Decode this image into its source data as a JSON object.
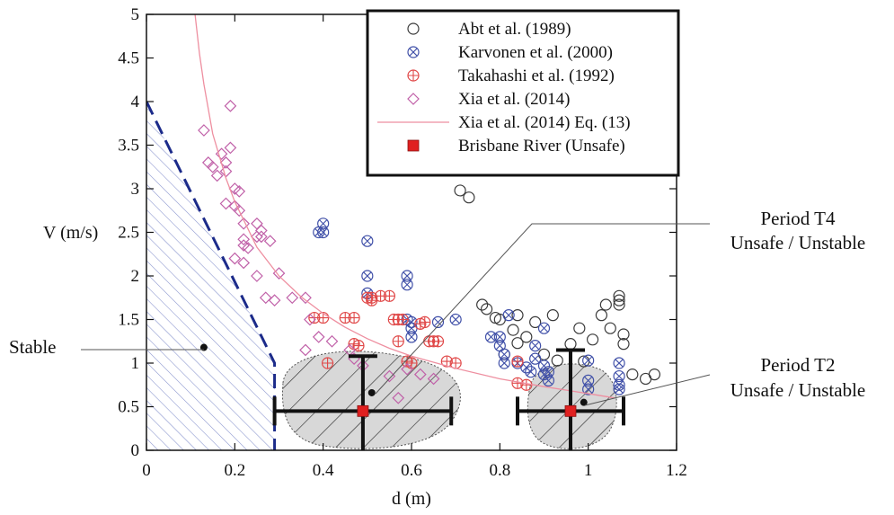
{
  "chart_data": {
    "type": "scatter",
    "xlabel": "d (m)",
    "ylabel": "V (m/s)",
    "xlim": [
      0,
      1.2
    ],
    "ylim": [
      0,
      5
    ],
    "x_ticks": [
      "0",
      "0.2",
      "0.4",
      "0.6",
      "0.8",
      "1",
      "1.2"
    ],
    "y_ticks": [
      "0",
      "0.5",
      "1",
      "1.5",
      "2",
      "2.5",
      "3",
      "3.5",
      "4",
      "4.5",
      "5"
    ],
    "legend_position": "top-right",
    "grid": false,
    "series": [
      {
        "name": "Abt et al. (1989)",
        "marker": "circle",
        "color": "#3a3a3a",
        "points": [
          [
            0.71,
            2.98
          ],
          [
            0.73,
            2.9
          ],
          [
            0.76,
            1.67
          ],
          [
            0.77,
            1.62
          ],
          [
            0.79,
            1.52
          ],
          [
            0.8,
            1.5
          ],
          [
            0.81,
            1.1
          ],
          [
            0.83,
            1.38
          ],
          [
            0.84,
            1.55
          ],
          [
            0.84,
            1.23
          ],
          [
            0.86,
            1.3
          ],
          [
            0.88,
            1.47
          ],
          [
            0.9,
            1.1
          ],
          [
            0.92,
            1.55
          ],
          [
            0.93,
            1.03
          ],
          [
            0.96,
            1.22
          ],
          [
            0.98,
            1.4
          ],
          [
            0.99,
            1.02
          ],
          [
            1.01,
            1.27
          ],
          [
            1.03,
            1.55
          ],
          [
            1.04,
            1.67
          ],
          [
            1.05,
            1.4
          ],
          [
            1.07,
            1.77
          ],
          [
            1.07,
            1.72
          ],
          [
            1.07,
            1.67
          ],
          [
            1.08,
            1.33
          ],
          [
            1.08,
            1.22
          ],
          [
            1.1,
            0.87
          ],
          [
            1.13,
            0.82
          ],
          [
            1.15,
            0.87
          ]
        ]
      },
      {
        "name": "Karvonen et al. (2000)",
        "marker": "circle-x",
        "color": "#4050a8",
        "points": [
          [
            0.39,
            2.5
          ],
          [
            0.4,
            2.6
          ],
          [
            0.4,
            2.5
          ],
          [
            0.5,
            2.4
          ],
          [
            0.5,
            2.0
          ],
          [
            0.5,
            1.8
          ],
          [
            0.59,
            2.0
          ],
          [
            0.59,
            1.9
          ],
          [
            0.59,
            1.5
          ],
          [
            0.6,
            1.47
          ],
          [
            0.6,
            1.4
          ],
          [
            0.6,
            1.3
          ],
          [
            0.66,
            1.47
          ],
          [
            0.7,
            1.5
          ],
          [
            0.78,
            1.3
          ],
          [
            0.8,
            1.3
          ],
          [
            0.8,
            1.2
          ],
          [
            0.81,
            1.1
          ],
          [
            0.81,
            1.0
          ],
          [
            0.82,
            1.55
          ],
          [
            0.84,
            1.0
          ],
          [
            0.86,
            0.95
          ],
          [
            0.87,
            0.9
          ],
          [
            0.88,
            1.2
          ],
          [
            0.88,
            1.05
          ],
          [
            0.9,
            1.4
          ],
          [
            0.9,
            0.97
          ],
          [
            0.9,
            0.87
          ],
          [
            0.91,
            0.9
          ],
          [
            0.91,
            0.8
          ],
          [
            1.0,
            1.03
          ],
          [
            1.0,
            0.8
          ],
          [
            1.0,
            0.7
          ],
          [
            1.07,
            1.0
          ],
          [
            1.07,
            0.85
          ],
          [
            1.07,
            0.75
          ],
          [
            1.07,
            0.7
          ]
        ]
      },
      {
        "name": "Takahashi et al. (1992)",
        "marker": "circle-plus",
        "color": "#e04848",
        "points": [
          [
            0.38,
            1.52
          ],
          [
            0.4,
            1.52
          ],
          [
            0.41,
            1.0
          ],
          [
            0.45,
            1.52
          ],
          [
            0.47,
            1.52
          ],
          [
            0.47,
            1.22
          ],
          [
            0.48,
            1.2
          ],
          [
            0.5,
            1.75
          ],
          [
            0.51,
            1.75
          ],
          [
            0.51,
            1.72
          ],
          [
            0.53,
            1.77
          ],
          [
            0.55,
            1.77
          ],
          [
            0.56,
            1.5
          ],
          [
            0.57,
            1.5
          ],
          [
            0.57,
            1.25
          ],
          [
            0.58,
            1.5
          ],
          [
            0.59,
            1.02
          ],
          [
            0.6,
            1.0
          ],
          [
            0.62,
            1.45
          ],
          [
            0.63,
            1.47
          ],
          [
            0.64,
            1.25
          ],
          [
            0.65,
            1.25
          ],
          [
            0.66,
            1.25
          ],
          [
            0.68,
            1.02
          ],
          [
            0.7,
            1.0
          ],
          [
            0.84,
            1.02
          ],
          [
            0.84,
            0.77
          ],
          [
            0.86,
            0.75
          ]
        ]
      },
      {
        "name": "Xia et al. (2014)",
        "marker": "diamond",
        "color": "#c060a8",
        "points": [
          [
            0.13,
            3.67
          ],
          [
            0.14,
            3.3
          ],
          [
            0.15,
            3.25
          ],
          [
            0.16,
            3.15
          ],
          [
            0.17,
            3.4
          ],
          [
            0.18,
            3.3
          ],
          [
            0.18,
            3.2
          ],
          [
            0.19,
            3.95
          ],
          [
            0.19,
            3.47
          ],
          [
            0.2,
            3.0
          ],
          [
            0.21,
            2.97
          ],
          [
            0.18,
            2.83
          ],
          [
            0.2,
            2.8
          ],
          [
            0.21,
            2.75
          ],
          [
            0.22,
            2.6
          ],
          [
            0.22,
            2.42
          ],
          [
            0.22,
            2.35
          ],
          [
            0.23,
            2.32
          ],
          [
            0.2,
            2.2
          ],
          [
            0.22,
            2.15
          ],
          [
            0.25,
            2.6
          ],
          [
            0.26,
            2.52
          ],
          [
            0.25,
            2.45
          ],
          [
            0.26,
            2.45
          ],
          [
            0.28,
            2.4
          ],
          [
            0.3,
            2.03
          ],
          [
            0.25,
            2.0
          ],
          [
            0.27,
            1.75
          ],
          [
            0.29,
            1.72
          ],
          [
            0.33,
            1.75
          ],
          [
            0.36,
            1.75
          ],
          [
            0.37,
            1.5
          ],
          [
            0.36,
            1.15
          ],
          [
            0.39,
            1.3
          ],
          [
            0.42,
            1.25
          ],
          [
            0.46,
            1.15
          ],
          [
            0.47,
            1.05
          ],
          [
            0.49,
            0.97
          ],
          [
            0.55,
            0.85
          ],
          [
            0.57,
            0.6
          ],
          [
            0.59,
            0.93
          ],
          [
            0.62,
            0.87
          ],
          [
            0.65,
            0.82
          ]
        ]
      },
      {
        "name": "Xia et al. (2014) Eq. (13)",
        "marker": "line",
        "color": "#ee8fa0",
        "points": [
          [
            0.11,
            5.0
          ],
          [
            0.12,
            4.55
          ],
          [
            0.13,
            4.2
          ],
          [
            0.15,
            3.63
          ],
          [
            0.18,
            3.12
          ],
          [
            0.2,
            2.85
          ],
          [
            0.25,
            2.33
          ],
          [
            0.3,
            2.0
          ],
          [
            0.35,
            1.76
          ],
          [
            0.4,
            1.57
          ],
          [
            0.45,
            1.41
          ],
          [
            0.5,
            1.28
          ],
          [
            0.55,
            1.17
          ],
          [
            0.6,
            1.08
          ],
          [
            0.7,
            0.94
          ],
          [
            0.8,
            0.82
          ],
          [
            0.9,
            0.73
          ],
          [
            1.0,
            0.65
          ],
          [
            1.06,
            0.6
          ]
        ]
      },
      {
        "name": "Brisbane River (Unsafe)",
        "marker": "square",
        "color": "#e02020",
        "points": [
          [
            0.49,
            0.45
          ],
          [
            0.96,
            0.45
          ]
        ],
        "x_error": [
          [
            0.29,
            0.69
          ],
          [
            0.84,
            1.08
          ]
        ],
        "y_error": [
          [
            0.0,
            1.08
          ],
          [
            0.0,
            1.15
          ]
        ]
      }
    ],
    "stable_boundary": [
      [
        0.0,
        4.0
      ],
      [
        0.29,
        1.0
      ],
      [
        0.29,
        0.0
      ]
    ],
    "regions": [
      {
        "name": "Stable",
        "dot": [
          0.13,
          1.18
        ]
      },
      {
        "name": "Period T4 Unsafe / Unstable",
        "dot": [
          0.51,
          0.66
        ]
      },
      {
        "name": "Period T2 Unsafe / Unstable",
        "dot": [
          0.99,
          0.55
        ]
      }
    ],
    "annotations": {
      "stable": "Stable",
      "t4_line1": "Period T4",
      "t4_line2": "Unsafe / Unstable",
      "t2_line1": "Period T2",
      "t2_line2": "Unsafe / Unstable"
    }
  }
}
